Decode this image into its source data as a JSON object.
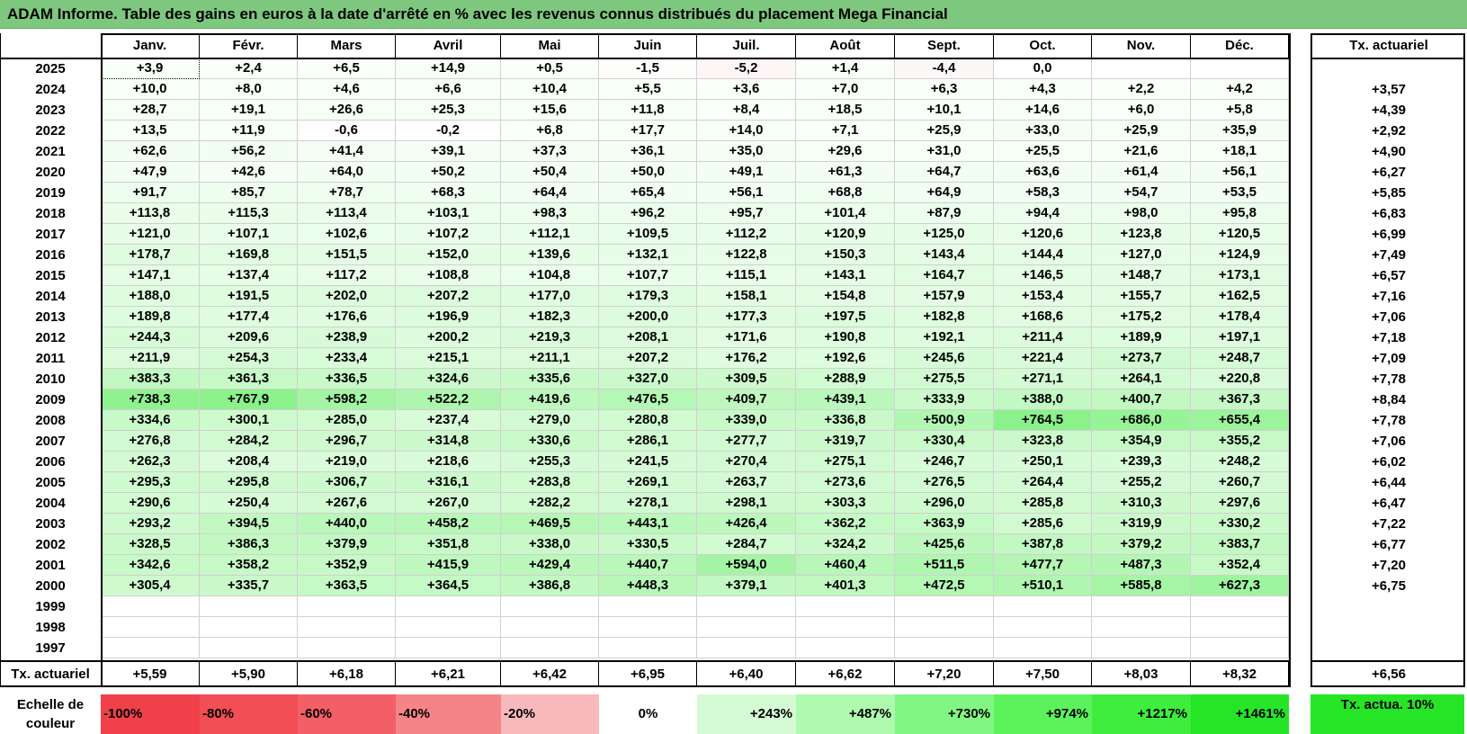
{
  "title": "ADAM Informe. Table des gains en euros à la date d'arrêté en % avec les revenus connus distribués du placement Mega Financial",
  "months": [
    "Janv.",
    "Févr.",
    "Mars",
    "Avril",
    "Mai",
    "Juin",
    "Juil.",
    "Août",
    "Sept.",
    "Oct.",
    "Nov.",
    "Déc."
  ],
  "tx_header": "Tx. actuariel",
  "rows": [
    {
      "year": "2025",
      "values": [
        "+3,9",
        "+2,4",
        "+6,5",
        "+14,9",
        "+0,5",
        "-1,5",
        "-5,2",
        "+1,4",
        "-4,4",
        "0,0",
        "",
        ""
      ],
      "tx": ""
    },
    {
      "year": "2024",
      "values": [
        "+10,0",
        "+8,0",
        "+4,6",
        "+6,6",
        "+10,4",
        "+5,5",
        "+3,6",
        "+7,0",
        "+6,3",
        "+4,3",
        "+2,2",
        "+4,2"
      ],
      "tx": "+3,57"
    },
    {
      "year": "2023",
      "values": [
        "+28,7",
        "+19,1",
        "+26,6",
        "+25,3",
        "+15,6",
        "+11,8",
        "+8,4",
        "+18,5",
        "+10,1",
        "+14,6",
        "+6,0",
        "+5,8"
      ],
      "tx": "+4,39"
    },
    {
      "year": "2022",
      "values": [
        "+13,5",
        "+11,9",
        "-0,6",
        "-0,2",
        "+6,8",
        "+17,7",
        "+14,0",
        "+7,1",
        "+25,9",
        "+33,0",
        "+25,9",
        "+35,9"
      ],
      "tx": "+2,92"
    },
    {
      "year": "2021",
      "values": [
        "+62,6",
        "+56,2",
        "+41,4",
        "+39,1",
        "+37,3",
        "+36,1",
        "+35,0",
        "+29,6",
        "+31,0",
        "+25,5",
        "+21,6",
        "+18,1"
      ],
      "tx": "+4,90"
    },
    {
      "year": "2020",
      "values": [
        "+47,9",
        "+42,6",
        "+64,0",
        "+50,2",
        "+50,4",
        "+50,0",
        "+49,1",
        "+61,3",
        "+64,7",
        "+63,6",
        "+61,4",
        "+56,1"
      ],
      "tx": "+6,27"
    },
    {
      "year": "2019",
      "values": [
        "+91,7",
        "+85,7",
        "+78,7",
        "+68,3",
        "+64,4",
        "+65,4",
        "+56,1",
        "+68,8",
        "+64,9",
        "+58,3",
        "+54,7",
        "+53,5"
      ],
      "tx": "+5,85"
    },
    {
      "year": "2018",
      "values": [
        "+113,8",
        "+115,3",
        "+113,4",
        "+103,1",
        "+98,3",
        "+96,2",
        "+95,7",
        "+101,4",
        "+87,9",
        "+94,4",
        "+98,0",
        "+95,8"
      ],
      "tx": "+6,83"
    },
    {
      "year": "2017",
      "values": [
        "+121,0",
        "+107,1",
        "+102,6",
        "+107,2",
        "+112,1",
        "+109,5",
        "+112,2",
        "+120,9",
        "+125,0",
        "+120,6",
        "+123,8",
        "+120,5"
      ],
      "tx": "+6,99"
    },
    {
      "year": "2016",
      "values": [
        "+178,7",
        "+169,8",
        "+151,5",
        "+152,0",
        "+139,6",
        "+132,1",
        "+122,8",
        "+150,3",
        "+143,4",
        "+144,4",
        "+127,0",
        "+124,9"
      ],
      "tx": "+7,49"
    },
    {
      "year": "2015",
      "values": [
        "+147,1",
        "+137,4",
        "+117,2",
        "+108,8",
        "+104,8",
        "+107,7",
        "+115,1",
        "+143,1",
        "+164,7",
        "+146,5",
        "+148,7",
        "+173,1"
      ],
      "tx": "+6,57"
    },
    {
      "year": "2014",
      "values": [
        "+188,0",
        "+191,5",
        "+202,0",
        "+207,2",
        "+177,0",
        "+179,3",
        "+158,1",
        "+154,8",
        "+157,9",
        "+153,4",
        "+155,7",
        "+162,5"
      ],
      "tx": "+7,16"
    },
    {
      "year": "2013",
      "values": [
        "+189,8",
        "+177,4",
        "+176,6",
        "+196,9",
        "+182,3",
        "+200,0",
        "+177,3",
        "+197,5",
        "+182,8",
        "+168,6",
        "+175,2",
        "+178,4"
      ],
      "tx": "+7,06"
    },
    {
      "year": "2012",
      "values": [
        "+244,3",
        "+209,6",
        "+238,9",
        "+200,2",
        "+219,3",
        "+208,1",
        "+171,6",
        "+190,8",
        "+192,1",
        "+211,4",
        "+189,9",
        "+197,1"
      ],
      "tx": "+7,18"
    },
    {
      "year": "2011",
      "values": [
        "+211,9",
        "+254,3",
        "+233,4",
        "+215,1",
        "+211,1",
        "+207,2",
        "+176,2",
        "+192,6",
        "+245,6",
        "+221,4",
        "+273,7",
        "+248,7"
      ],
      "tx": "+7,09"
    },
    {
      "year": "2010",
      "values": [
        "+383,3",
        "+361,3",
        "+336,5",
        "+324,6",
        "+335,6",
        "+327,0",
        "+309,5",
        "+288,9",
        "+275,5",
        "+271,1",
        "+264,1",
        "+220,8"
      ],
      "tx": "+7,78"
    },
    {
      "year": "2009",
      "values": [
        "+738,3",
        "+767,9",
        "+598,2",
        "+522,2",
        "+419,6",
        "+476,5",
        "+409,7",
        "+439,1",
        "+333,9",
        "+388,0",
        "+400,7",
        "+367,3"
      ],
      "tx": "+8,84"
    },
    {
      "year": "2008",
      "values": [
        "+334,6",
        "+300,1",
        "+285,0",
        "+237,4",
        "+279,0",
        "+280,8",
        "+339,0",
        "+336,8",
        "+500,9",
        "+764,5",
        "+686,0",
        "+655,4"
      ],
      "tx": "+7,78"
    },
    {
      "year": "2007",
      "values": [
        "+276,8",
        "+284,2",
        "+296,7",
        "+314,8",
        "+330,6",
        "+286,1",
        "+277,7",
        "+319,7",
        "+330,4",
        "+323,8",
        "+354,9",
        "+355,2"
      ],
      "tx": "+7,06"
    },
    {
      "year": "2006",
      "values": [
        "+262,3",
        "+208,4",
        "+219,0",
        "+218,6",
        "+255,3",
        "+241,5",
        "+270,4",
        "+275,1",
        "+246,7",
        "+250,1",
        "+239,3",
        "+248,2"
      ],
      "tx": "+6,02"
    },
    {
      "year": "2005",
      "values": [
        "+295,3",
        "+295,8",
        "+306,7",
        "+316,1",
        "+283,8",
        "+269,1",
        "+263,7",
        "+273,6",
        "+276,5",
        "+264,4",
        "+255,2",
        "+260,7"
      ],
      "tx": "+6,44"
    },
    {
      "year": "2004",
      "values": [
        "+290,6",
        "+250,4",
        "+267,6",
        "+267,0",
        "+282,2",
        "+278,1",
        "+298,1",
        "+303,3",
        "+296,0",
        "+285,8",
        "+310,3",
        "+297,6"
      ],
      "tx": "+6,47"
    },
    {
      "year": "2003",
      "values": [
        "+293,2",
        "+394,5",
        "+440,0",
        "+458,2",
        "+469,5",
        "+443,1",
        "+426,4",
        "+362,2",
        "+363,9",
        "+285,6",
        "+319,9",
        "+330,2"
      ],
      "tx": "+7,22"
    },
    {
      "year": "2002",
      "values": [
        "+328,5",
        "+386,3",
        "+379,9",
        "+351,8",
        "+338,0",
        "+330,5",
        "+284,7",
        "+324,2",
        "+425,6",
        "+387,8",
        "+379,2",
        "+383,7"
      ],
      "tx": "+6,77"
    },
    {
      "year": "2001",
      "values": [
        "+342,6",
        "+358,2",
        "+352,9",
        "+415,9",
        "+429,4",
        "+440,7",
        "+594,0",
        "+460,4",
        "+511,5",
        "+477,7",
        "+487,3",
        "+352,4"
      ],
      "tx": "+7,20"
    },
    {
      "year": "2000",
      "values": [
        "+305,4",
        "+335,7",
        "+363,5",
        "+364,5",
        "+386,8",
        "+448,3",
        "+379,1",
        "+401,3",
        "+472,5",
        "+510,1",
        "+585,8",
        "+627,3"
      ],
      "tx": "+6,75"
    },
    {
      "year": "1999",
      "values": [
        "",
        "",
        "",
        "",
        "",
        "",
        "",
        "",
        "",
        "",
        "",
        ""
      ],
      "tx": ""
    },
    {
      "year": "1998",
      "values": [
        "",
        "",
        "",
        "",
        "",
        "",
        "",
        "",
        "",
        "",
        "",
        ""
      ],
      "tx": ""
    },
    {
      "year": "1997",
      "values": [
        "",
        "",
        "",
        "",
        "",
        "",
        "",
        "",
        "",
        "",
        "",
        ""
      ],
      "tx": ""
    }
  ],
  "footer": {
    "label": "Tx. actuariel",
    "values": [
      "+5,59",
      "+5,90",
      "+6,18",
      "+6,21",
      "+6,42",
      "+6,95",
      "+6,40",
      "+6,62",
      "+7,20",
      "+7,50",
      "+8,03",
      "+8,32"
    ],
    "tx": "+6,56"
  },
  "scale": {
    "label": "Echelle de couleur",
    "items": [
      {
        "label": "-100%",
        "color": "#f0414a"
      },
      {
        "label": "-80%",
        "color": "#f14e55"
      },
      {
        "label": "-60%",
        "color": "#f25f66"
      },
      {
        "label": "-40%",
        "color": "#f58488"
      },
      {
        "label": "-20%",
        "color": "#f8b9bb"
      },
      {
        "label": "0%",
        "color": "#ffffff"
      },
      {
        "label": "+243%",
        "color": "#d4fbd4"
      },
      {
        "label": "+487%",
        "color": "#aefaae"
      },
      {
        "label": "+730%",
        "color": "#82f682"
      },
      {
        "label": "+974%",
        "color": "#5cf25c"
      },
      {
        "label": "+1217%",
        "color": "#3eed3e"
      },
      {
        "label": "+1461%",
        "color": "#26e526"
      }
    ],
    "tx_label": "Tx. actua. 10%",
    "tx_color": "#26e526"
  }
}
